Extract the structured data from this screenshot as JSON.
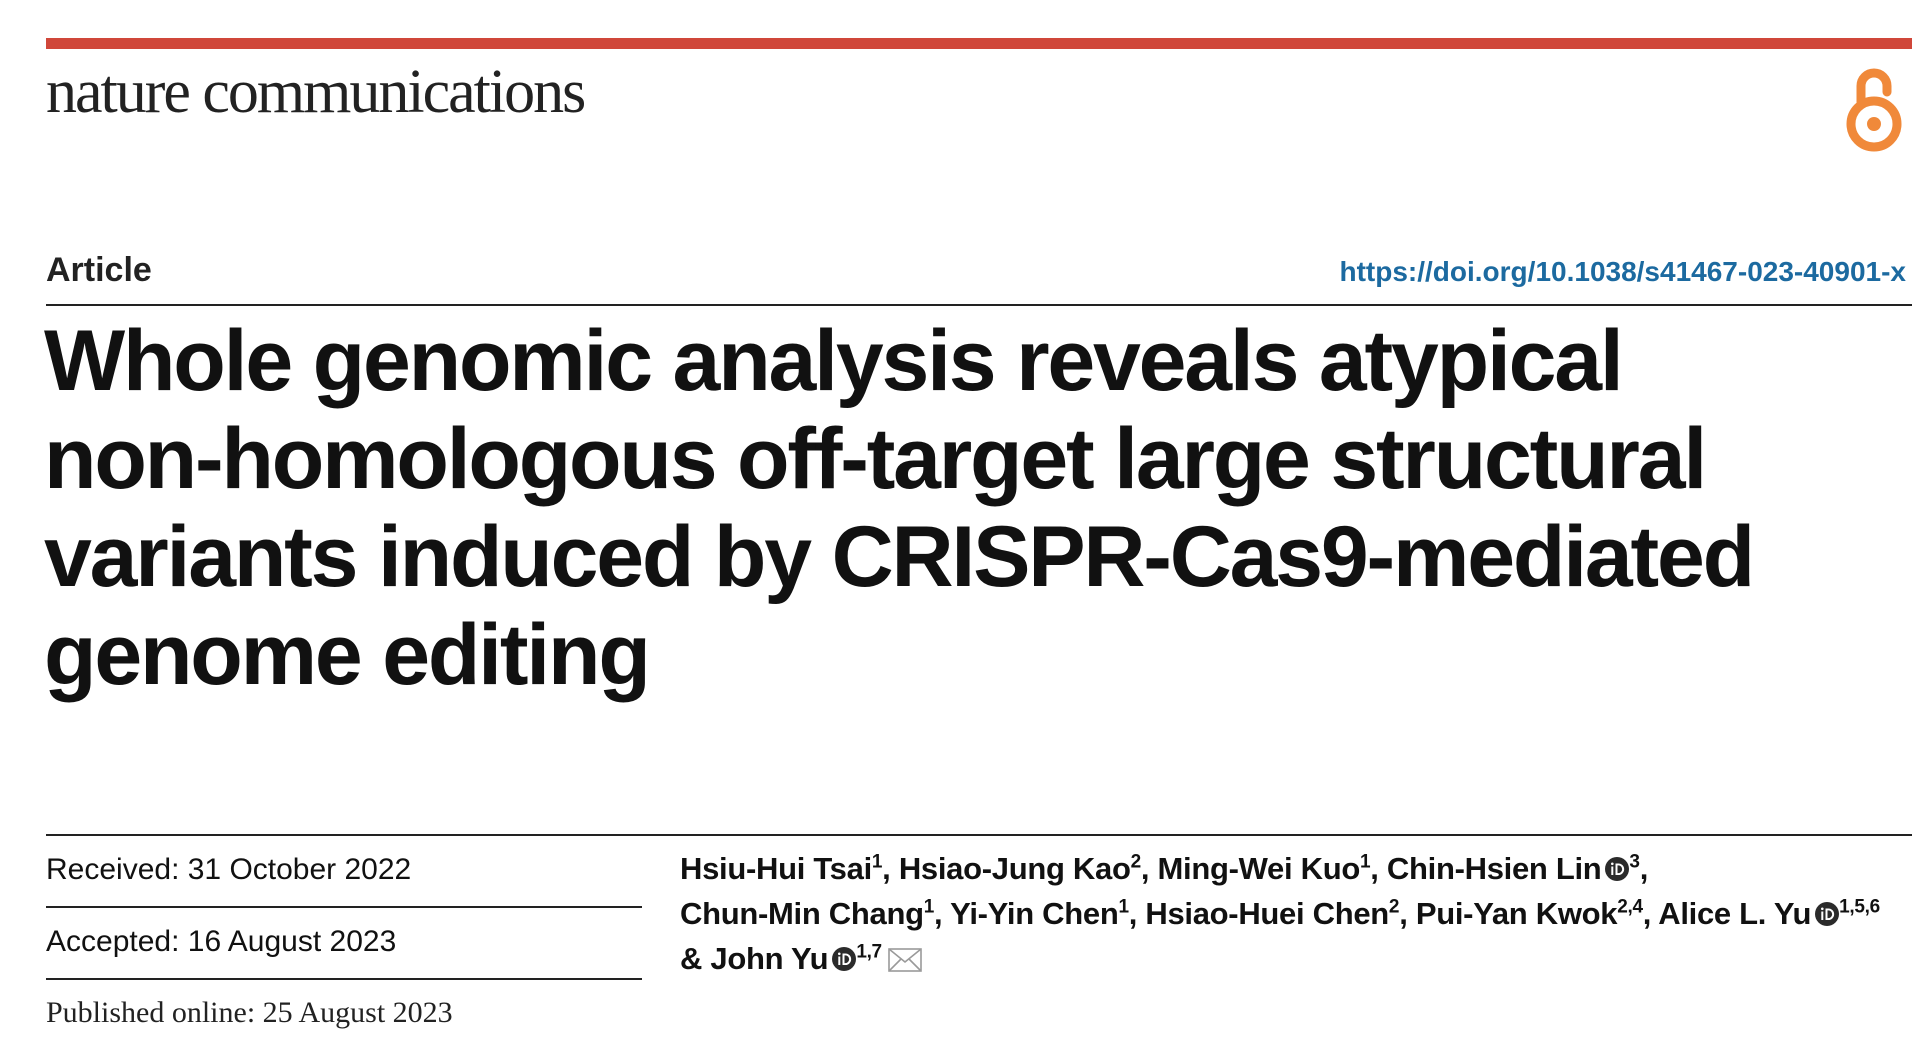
{
  "header": {
    "journal": "nature communications"
  },
  "article": {
    "type": "Article",
    "doi": "https://doi.org/10.1038/s41467-023-40901-x",
    "title_lines": [
      "Whole genomic analysis reveals atypical",
      "non-homologous off-target large structural",
      "variants induced by CRISPR-Cas9-mediated",
      "genome editing"
    ]
  },
  "dates": {
    "received": "Received: 31 October 2022",
    "accepted": "Accepted: 16 August 2023",
    "published": "Published online: 25 August 2023"
  },
  "authors": [
    {
      "name": "Hsiu-Hui Tsai",
      "aff": "1",
      "orcid": false,
      "sep": ", "
    },
    {
      "name": "Hsiao-Jung Kao",
      "aff": "2",
      "orcid": false,
      "sep": ", "
    },
    {
      "name": "Ming-Wei Kuo",
      "aff": "1",
      "orcid": false,
      "sep": ", "
    },
    {
      "name": "Chin-Hsien Lin",
      "aff": "3",
      "orcid": true,
      "sep": ", "
    },
    {
      "name": "Chun-Min Chang",
      "aff": "1",
      "orcid": false,
      "sep": ", "
    },
    {
      "name": "Yi-Yin Chen",
      "aff": "1",
      "orcid": false,
      "sep": ", "
    },
    {
      "name": "Hsiao-Huei Chen",
      "aff": "2",
      "orcid": false,
      "sep": ", "
    },
    {
      "name": "Pui-Yan Kwok",
      "aff": "2,4",
      "orcid": false,
      "sep": ", "
    },
    {
      "name": "Alice L. Yu",
      "aff": "1,5,6",
      "orcid": true,
      "sep": " & "
    },
    {
      "name": "John Yu",
      "aff": "1,7",
      "orcid": true,
      "sep": ""
    }
  ],
  "icons": {
    "open_access": "open-access-icon",
    "orcid": "orcid-icon",
    "mail": "mail-icon"
  },
  "colors": {
    "accent_bar": "#d0473a",
    "open_access": "#f0893a",
    "doi_link": "#1c6aa0",
    "orcid": "#2b2b2b"
  }
}
